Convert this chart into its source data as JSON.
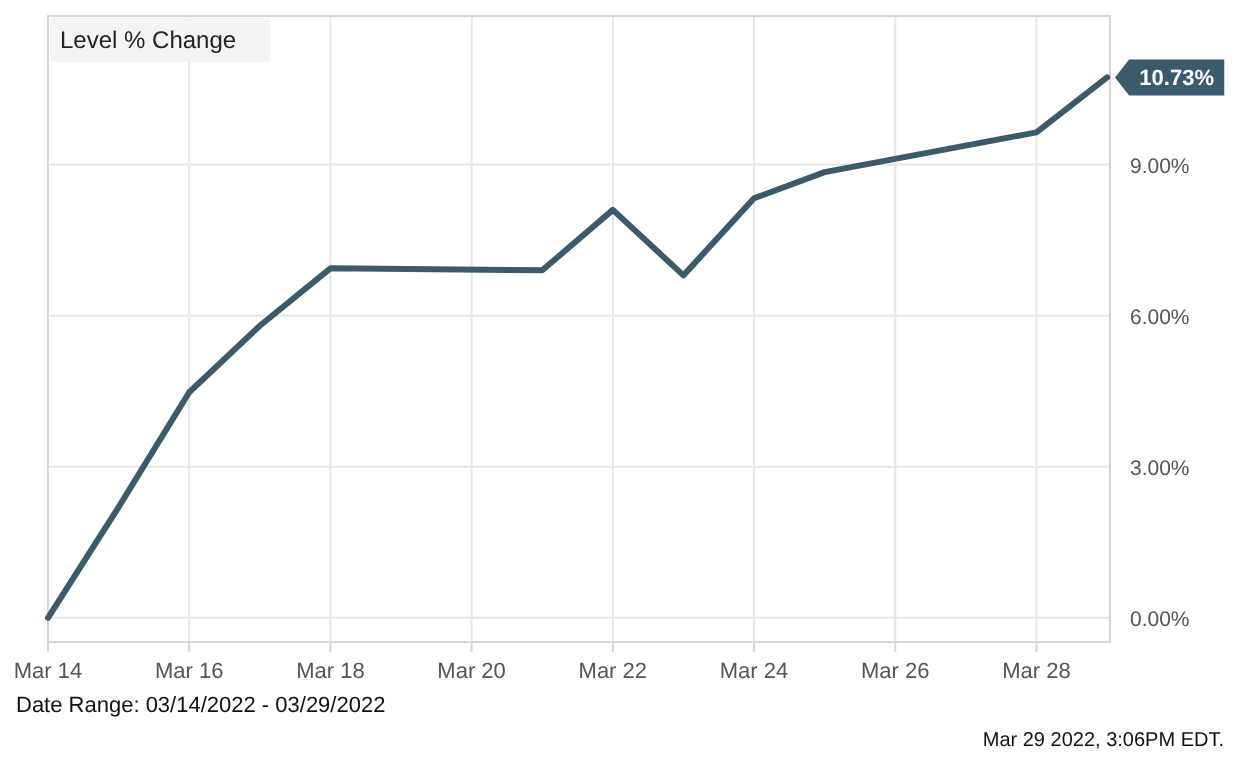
{
  "chart_data": {
    "type": "line",
    "title": "Level % Change",
    "x": [
      "2022-03-14",
      "2022-03-15",
      "2022-03-16",
      "2022-03-17",
      "2022-03-18",
      "2022-03-21",
      "2022-03-22",
      "2022-03-23",
      "2022-03-24",
      "2022-03-25",
      "2022-03-28",
      "2022-03-29"
    ],
    "series": [
      {
        "color": "#3b5b6c",
        "values": [
          0,
          2.2,
          4.48,
          5.8,
          6.94,
          6.9,
          8.1,
          6.8,
          8.33,
          8.85,
          9.64,
          10.73
        ],
        "value_labels": [
          null,
          null,
          null,
          null,
          null,
          null,
          null,
          null,
          null,
          null,
          null,
          "10.73%"
        ]
      }
    ],
    "xlim": [
      "2022-03-14",
      "2022-03-29T01:00"
    ],
    "xticks": [
      {
        "value": "2022-03-14",
        "label": "Mar 14"
      },
      {
        "value": "2022-03-16",
        "label": "Mar 16"
      },
      {
        "value": "2022-03-18",
        "label": "Mar 18"
      },
      {
        "value": "2022-03-20",
        "label": "Mar 20"
      },
      {
        "value": "2022-03-22",
        "label": "Mar 22"
      },
      {
        "value": "2022-03-24",
        "label": "Mar 24"
      },
      {
        "value": "2022-03-26",
        "label": "Mar 26"
      },
      {
        "value": "2022-03-28",
        "label": "Mar 28"
      }
    ],
    "ylim": [
      -0.48,
      11.95
    ],
    "yticks": [
      {
        "value": 0,
        "label": "0.00%"
      },
      {
        "value": 3,
        "label": "3.00%"
      },
      {
        "value": 6,
        "label": "6.00%"
      },
      {
        "value": 9,
        "label": "9.00%"
      }
    ],
    "grid": true,
    "marker": "none",
    "line_style": "solid",
    "annotations": [
      "Date Range: 03/14/2022 - 03/29/2022",
      "Mar 29 2022, 3:06PM EDT."
    ]
  }
}
